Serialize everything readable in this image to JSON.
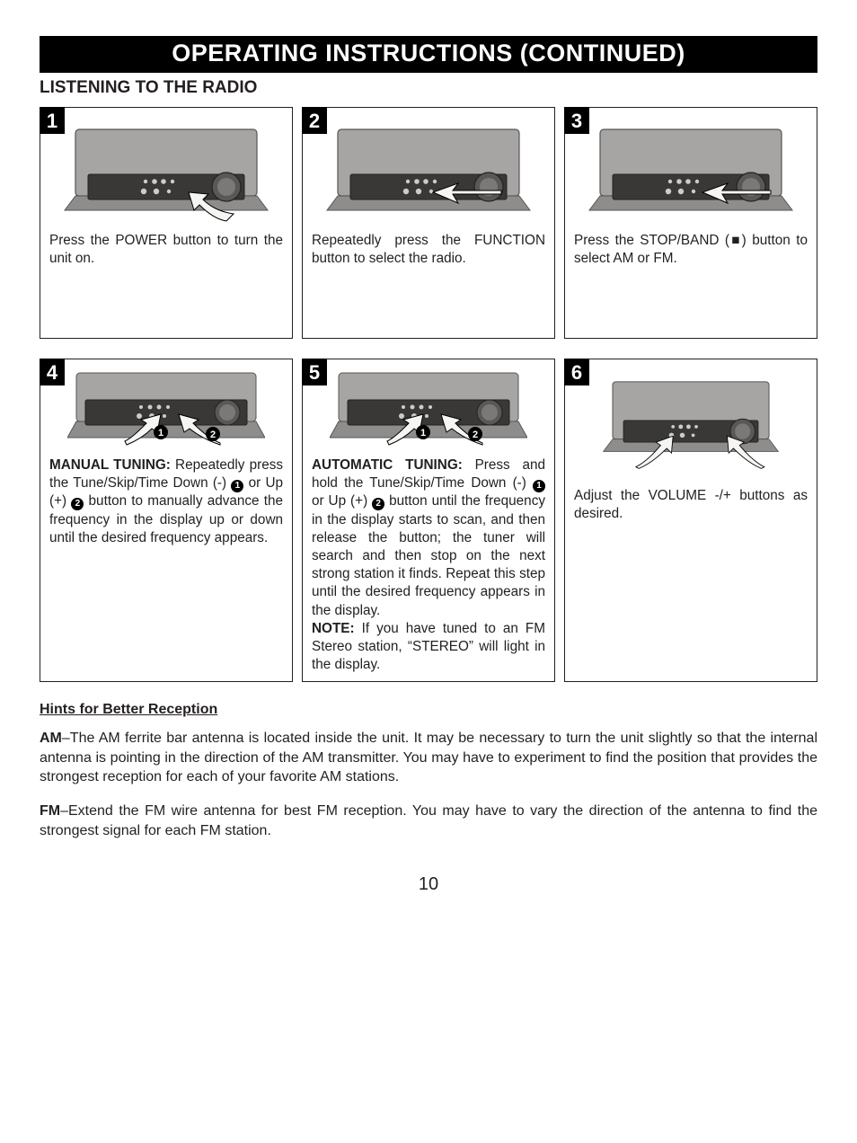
{
  "banner": "OPERATING INSTRUCTIONS (CONTINUED)",
  "section_title": "LISTENING TO THE RADIO",
  "steps": {
    "s1": {
      "num": "1",
      "caption_html": "Press the POWER button to turn the unit on."
    },
    "s2": {
      "num": "2",
      "caption_html": "Repeatedly press the FUNCTION button to select the radio."
    },
    "s3": {
      "num": "3",
      "caption_html": "Press the STOP/BAND (■) button to select AM or FM."
    },
    "s4": {
      "num": "4",
      "caption_html": "<b>MANUAL TUNING:</b> Repeatedly press the Tune/Skip/Time Down (-) <span class='circnum'>1</span> or Up (+) <span class='circnum'>2</span> button to manually advance the frequency in the display up or down until the desired frequency appears."
    },
    "s5": {
      "num": "5",
      "caption_html": "<b>AUTOMATIC TUNING:</b> Press and hold the Tune/Skip/Time Down (-) <span class='circnum'>1</span> or Up (+) <span class='circnum'>2</span> button until the frequency in the display starts to scan, and then release the button; the tuner will search and then stop on the next strong station it finds. Repeat this step until the desired frequency appears in the display.<br><b>NOTE:</b> If you have tuned to an FM Stereo station, “STEREO” will light in the display."
    },
    "s6": {
      "num": "6",
      "caption_html": "Adjust the VOLUME -/+ buttons as desired."
    }
  },
  "hints_title": "Hints for Better Reception",
  "hints_am_html": "<b>AM</b>–The AM ferrite bar antenna is located inside the unit. It may be necessary to turn the unit slightly so that the internal antenna is pointing in the direction of the AM transmitter. You may have to experiment to find the position that provides the strongest reception for each of your favorite AM stations.",
  "hints_fm_html": "<b>FM</b>–Extend the FM wire antenna for best FM reception. You may have to vary the direction of the antenna to find the strongest signal for each FM station.",
  "page_number": "10",
  "colors": {
    "body_light": "#a7a5a4",
    "body_mid": "#8f8d8c",
    "body_dark": "#5a5856",
    "panel": "#3a3836",
    "arrow_fill": "#f5f5f3",
    "arrow_stroke": "#000"
  }
}
